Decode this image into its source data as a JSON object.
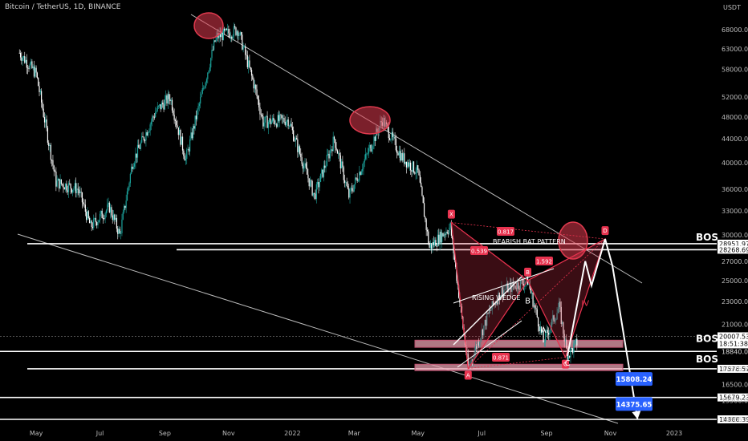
{
  "header": {
    "symbol": "Bitcoin / TetherUS, 1D, BINANCE"
  },
  "colors": {
    "background": "#000000",
    "candle_up": "#1ba39c",
    "candle_down": "#ffffff",
    "circle": "#e03a4e",
    "line": "#ffffff",
    "label_red": "#e8334f",
    "label_blue": "#2962ff"
  },
  "chart_data": {
    "type": "candlestick",
    "title": "Bitcoin / TetherUS, 1D, BINANCE",
    "y_axis": {
      "label": "USDT",
      "scale": "log",
      "ticks": [
        68000,
        63000,
        58000,
        52000,
        48000,
        44000,
        40000,
        36000,
        33000,
        30000,
        27000,
        25000,
        23000,
        21000,
        18840,
        17576.57,
        16500,
        15500,
        14366.39
      ]
    },
    "x_axis": {
      "ticks": [
        "May",
        "Jul",
        "Sep",
        "Nov",
        "2022",
        "Mar",
        "May",
        "Jul",
        "Sep",
        "Nov",
        "2023"
      ]
    },
    "price_path": [
      [
        "2021-04-15",
        62000
      ],
      [
        "2021-05-01",
        57000
      ],
      [
        "2021-05-20",
        37000
      ],
      [
        "2021-06-10",
        36000
      ],
      [
        "2021-06-22",
        31000
      ],
      [
        "2021-07-10",
        33500
      ],
      [
        "2021-07-20",
        30000
      ],
      [
        "2021-08-01",
        40000
      ],
      [
        "2021-08-23",
        49000
      ],
      [
        "2021-09-06",
        52000
      ],
      [
        "2021-09-21",
        40500
      ],
      [
        "2021-10-01",
        48000
      ],
      [
        "2021-10-20",
        66000
      ],
      [
        "2021-11-10",
        68000
      ],
      [
        "2021-11-26",
        54000
      ],
      [
        "2021-12-04",
        47000
      ],
      [
        "2021-12-28",
        47500
      ],
      [
        "2022-01-22",
        35000
      ],
      [
        "2022-02-10",
        44000
      ],
      [
        "2022-02-24",
        35000
      ],
      [
        "2022-03-28",
        47500
      ],
      [
        "2022-04-15",
        41000
      ],
      [
        "2022-05-01",
        38500
      ],
      [
        "2022-05-12",
        28500
      ],
      [
        "2022-06-01",
        31000
      ],
      [
        "2022-06-18",
        17600
      ],
      [
        "2022-07-08",
        22000
      ],
      [
        "2022-07-20",
        24000
      ],
      [
        "2022-08-14",
        25000
      ],
      [
        "2022-08-29",
        19600
      ],
      [
        "2022-09-13",
        22500
      ],
      [
        "2022-09-21",
        18500
      ],
      [
        "2022-09-30",
        19500
      ]
    ],
    "horizontal_levels": [
      28951.97,
      28268.69,
      17576.57,
      15679.23,
      14366.39
    ],
    "zones": [
      {
        "top": 19700,
        "bottom": 19150
      },
      {
        "top": 17900,
        "bottom": 17450
      }
    ],
    "harmonic_points": [
      {
        "label": "X",
        "date": "2022-06-02",
        "price": 31500
      },
      {
        "label": "A",
        "date": "2022-06-18",
        "price": 17600
      },
      {
        "label": "B",
        "date": "2022-08-14",
        "price": 25000
      },
      {
        "label": "C",
        "date": "2022-09-19",
        "price": 18400
      },
      {
        "label": "D",
        "date": "2022-10-27",
        "price": 29500
      }
    ],
    "ratios": [
      "0.817",
      "0.539",
      "1.592",
      "0.871"
    ],
    "wave_labels": [
      {
        "label": "B",
        "date": "2022-08-14",
        "price": 22800
      },
      {
        "label": "A",
        "date": "2022-08-29",
        "price": 20300
      },
      {
        "label": "C",
        "date": "2022-09-21",
        "price": 17800
      },
      {
        "label": "IV",
        "date": "2022-10-08",
        "price": 22600
      }
    ],
    "projection": [
      [
        "2022-10-27",
        29500
      ],
      [
        "2022-11-03",
        26500
      ],
      [
        "2022-11-27",
        14366.39
      ]
    ],
    "price_labels": [
      {
        "text": "15808.24",
        "date": "2022-11-15",
        "price": 16850
      },
      {
        "text": "14375.65",
        "date": "2022-11-15",
        "price": 15250
      }
    ],
    "annotations": {
      "bos": [
        "BOS",
        "BOS",
        "BOS"
      ],
      "pattern": "BEARISH BAT PATTERN",
      "wedge": "RISING WEDGE",
      "current_price": "20007.53",
      "countdown": "18:51:38",
      "overlap_level": "18840.00"
    }
  }
}
